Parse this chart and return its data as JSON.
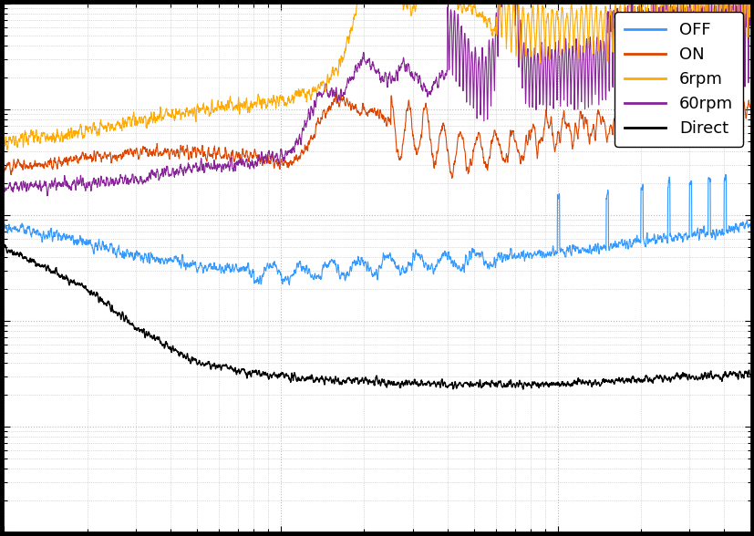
{
  "legend_labels": [
    "OFF",
    "ON",
    "6rpm",
    "60rpm",
    "Direct"
  ],
  "colors": [
    "#3399ff",
    "#dd4400",
    "#ffaa00",
    "#882299",
    "#000000"
  ],
  "linewidths": [
    0.8,
    0.8,
    0.8,
    0.8,
    1.0
  ],
  "xlim": [
    1,
    500
  ],
  "ylim": [
    1e-08,
    0.001
  ],
  "background_color": "#ffffff",
  "grid_color": "#bbbbbb",
  "seed": 42
}
